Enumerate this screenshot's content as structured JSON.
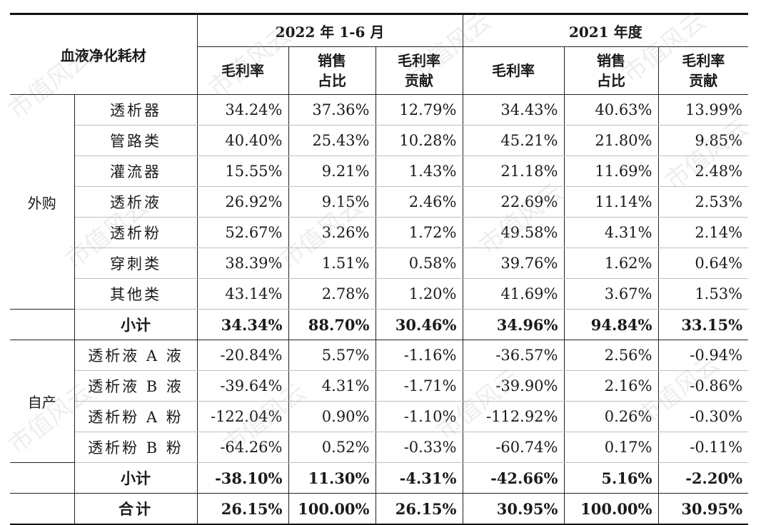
{
  "header": {
    "corner": "血液净化耗材",
    "period1": "2022 年 1-6 月",
    "period2": "2021 年度",
    "col_margin": "毛利率",
    "col_share": "销售\n占比",
    "col_contrib": "毛利率\n贡献"
  },
  "groups": [
    {
      "label": "外购",
      "rows": [
        {
          "name": "透析器",
          "v": [
            "34.24%",
            "37.36%",
            "12.79%",
            "34.43%",
            "40.63%",
            "13.99%"
          ]
        },
        {
          "name": "管路类",
          "v": [
            "40.40%",
            "25.43%",
            "10.28%",
            "45.21%",
            "21.80%",
            "9.85%"
          ]
        },
        {
          "name": "灌流器",
          "v": [
            "15.55%",
            "9.21%",
            "1.43%",
            "21.18%",
            "11.69%",
            "2.48%"
          ]
        },
        {
          "name": "透析液",
          "v": [
            "26.92%",
            "9.15%",
            "2.46%",
            "22.69%",
            "11.14%",
            "2.53%"
          ]
        },
        {
          "name": "透析粉",
          "v": [
            "52.67%",
            "3.26%",
            "1.72%",
            "49.58%",
            "4.31%",
            "2.14%"
          ]
        },
        {
          "name": "穿刺类",
          "v": [
            "38.39%",
            "1.51%",
            "0.58%",
            "39.76%",
            "1.62%",
            "0.64%"
          ]
        },
        {
          "name": "其他类",
          "v": [
            "43.14%",
            "2.78%",
            "1.20%",
            "41.69%",
            "3.67%",
            "1.53%"
          ]
        }
      ],
      "subtotal": {
        "name": "小计",
        "v": [
          "34.34%",
          "88.70%",
          "30.46%",
          "34.96%",
          "94.84%",
          "33.15%"
        ]
      }
    },
    {
      "label": "自产",
      "rows": [
        {
          "name": "透析液 A 液",
          "v": [
            "-20.84%",
            "5.57%",
            "-1.16%",
            "-36.57%",
            "2.56%",
            "-0.94%"
          ]
        },
        {
          "name": "透析液 B 液",
          "v": [
            "-39.64%",
            "4.31%",
            "-1.71%",
            "-39.90%",
            "2.16%",
            "-0.86%"
          ]
        },
        {
          "name": "透析粉 A 粉",
          "v": [
            "-122.04%",
            "0.90%",
            "-1.10%",
            "-112.92%",
            "0.26%",
            "-0.30%"
          ]
        },
        {
          "name": "透析粉 B 粉",
          "v": [
            "-64.26%",
            "0.52%",
            "-0.33%",
            "-60.74%",
            "0.17%",
            "-0.11%"
          ]
        }
      ],
      "subtotal": {
        "name": "小计",
        "v": [
          "-38.10%",
          "11.30%",
          "-4.31%",
          "-42.66%",
          "5.16%",
          "-2.20%"
        ]
      }
    }
  ],
  "total": {
    "name": "合计",
    "v": [
      "26.15%",
      "100.00%",
      "26.15%",
      "30.95%",
      "100.00%",
      "30.95%"
    ]
  },
  "watermark": "市值风云"
}
